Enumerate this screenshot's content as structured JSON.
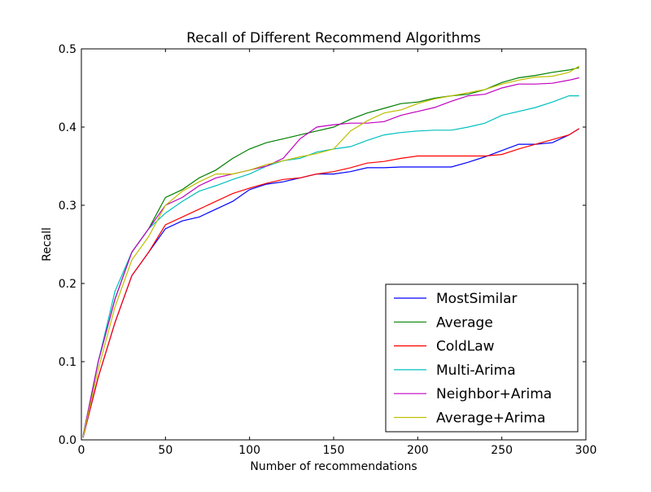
{
  "chart_data": {
    "type": "line",
    "title": "Recall of Different Recommend Algorithms",
    "xlabel": "Number of recommendations",
    "ylabel": "Recall",
    "xlim": [
      0,
      300
    ],
    "ylim": [
      0,
      0.5
    ],
    "xticks": [
      0,
      50,
      100,
      150,
      200,
      250,
      300
    ],
    "xtick_labels": [
      "0",
      "50",
      "100",
      "150",
      "200",
      "250",
      "300"
    ],
    "yticks": [
      0,
      0.1,
      0.2,
      0.3,
      0.4,
      0.5
    ],
    "ytick_labels": [
      "0.0",
      "0.1",
      "0.2",
      "0.3",
      "0.4",
      "0.5"
    ],
    "grid": false,
    "legend_position": "lower-right",
    "x": [
      1,
      10,
      20,
      30,
      40,
      50,
      60,
      70,
      80,
      90,
      100,
      110,
      120,
      130,
      140,
      150,
      160,
      170,
      180,
      190,
      200,
      210,
      220,
      230,
      240,
      250,
      260,
      270,
      280,
      290,
      296
    ],
    "series": [
      {
        "name": "MostSimilar",
        "color": "#0000ff",
        "values": [
          0.003,
          0.08,
          0.15,
          0.21,
          0.24,
          0.27,
          0.28,
          0.285,
          0.295,
          0.305,
          0.32,
          0.327,
          0.33,
          0.335,
          0.34,
          0.34,
          0.343,
          0.348,
          0.348,
          0.349,
          0.349,
          0.349,
          0.349,
          0.355,
          0.362,
          0.37,
          0.378,
          0.378,
          0.38,
          0.39,
          0.398
        ]
      },
      {
        "name": "Average",
        "color": "#008000",
        "values": [
          0.004,
          0.1,
          0.18,
          0.24,
          0.27,
          0.31,
          0.32,
          0.335,
          0.345,
          0.36,
          0.372,
          0.38,
          0.385,
          0.39,
          0.395,
          0.4,
          0.41,
          0.418,
          0.424,
          0.43,
          0.432,
          0.437,
          0.44,
          0.442,
          0.448,
          0.457,
          0.463,
          0.466,
          0.47,
          0.473,
          0.476
        ]
      },
      {
        "name": "ColdLaw",
        "color": "#ff0000",
        "values": [
          0.004,
          0.08,
          0.15,
          0.21,
          0.24,
          0.275,
          0.285,
          0.295,
          0.305,
          0.315,
          0.322,
          0.328,
          0.333,
          0.335,
          0.34,
          0.343,
          0.348,
          0.354,
          0.356,
          0.36,
          0.363,
          0.363,
          0.363,
          0.363,
          0.363,
          0.365,
          0.372,
          0.378,
          0.384,
          0.39,
          0.398
        ]
      },
      {
        "name": "Multi-Arima",
        "color": "#00bfbf",
        "values": [
          0.006,
          0.1,
          0.19,
          0.24,
          0.27,
          0.29,
          0.305,
          0.318,
          0.325,
          0.333,
          0.34,
          0.35,
          0.357,
          0.36,
          0.368,
          0.372,
          0.375,
          0.383,
          0.39,
          0.393,
          0.395,
          0.396,
          0.396,
          0.4,
          0.405,
          0.415,
          0.42,
          0.425,
          0.432,
          0.44,
          0.44
        ]
      },
      {
        "name": "Neighbor+Arima",
        "color": "#bf00bf",
        "values": [
          0.005,
          0.1,
          0.18,
          0.24,
          0.27,
          0.3,
          0.31,
          0.325,
          0.335,
          0.34,
          0.345,
          0.35,
          0.36,
          0.385,
          0.4,
          0.403,
          0.405,
          0.405,
          0.407,
          0.415,
          0.42,
          0.425,
          0.433,
          0.44,
          0.442,
          0.45,
          0.455,
          0.455,
          0.456,
          0.46,
          0.463
        ]
      },
      {
        "name": "Average+Arima",
        "color": "#bfbf00",
        "values": [
          0.004,
          0.09,
          0.17,
          0.23,
          0.26,
          0.3,
          0.318,
          0.33,
          0.34,
          0.34,
          0.345,
          0.352,
          0.357,
          0.362,
          0.366,
          0.372,
          0.395,
          0.408,
          0.418,
          0.422,
          0.43,
          0.436,
          0.44,
          0.444,
          0.448,
          0.455,
          0.46,
          0.464,
          0.465,
          0.47,
          0.478
        ]
      }
    ]
  }
}
